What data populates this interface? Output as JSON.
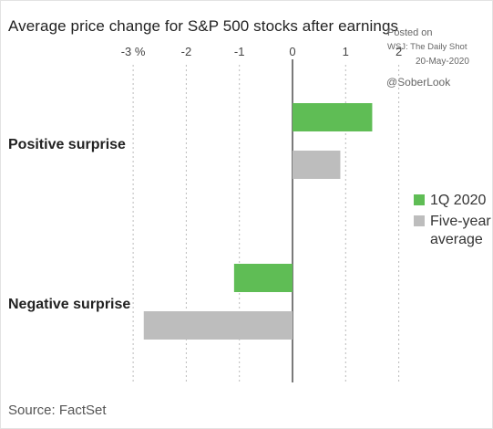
{
  "header": {
    "title": "Average price change for S&P 500 stocks after earnings"
  },
  "credit": {
    "posted": "Posted on",
    "outlet": "WSJ: The Daily Shot",
    "date": "20-May-2020",
    "handle": "@SoberLook"
  },
  "footer": {
    "source": "Source: FactSet"
  },
  "colors": {
    "series_1q2020": "#5fbd55",
    "series_five_year": "#bdbdbd",
    "axis": "#333333",
    "grid": "#bbbbbb"
  },
  "chart_data": {
    "type": "bar",
    "orientation": "horizontal",
    "title": "Average price change for S&P 500 stocks after earnings",
    "categories": [
      "Positive surprise",
      "Negative surprise"
    ],
    "series": [
      {
        "name": "1Q 2020",
        "values": [
          1.5,
          -1.1
        ],
        "color": "#5fbd55"
      },
      {
        "name": "Five-year average",
        "values": [
          0.9,
          -2.8
        ],
        "color": "#bdbdbd"
      }
    ],
    "xlim": [
      -3,
      2
    ],
    "xticks": [
      -3,
      -2,
      -1,
      0,
      1,
      2
    ],
    "xtick_labels": [
      "-3 %",
      "-2",
      "-1",
      "0",
      "1",
      "2"
    ],
    "grid": "vertical dashed",
    "legend_position": "right"
  },
  "legend": [
    {
      "label": "1Q 2020",
      "color": "#5fbd55"
    },
    {
      "label": "Five-year average",
      "color": "#bdbdbd"
    }
  ]
}
